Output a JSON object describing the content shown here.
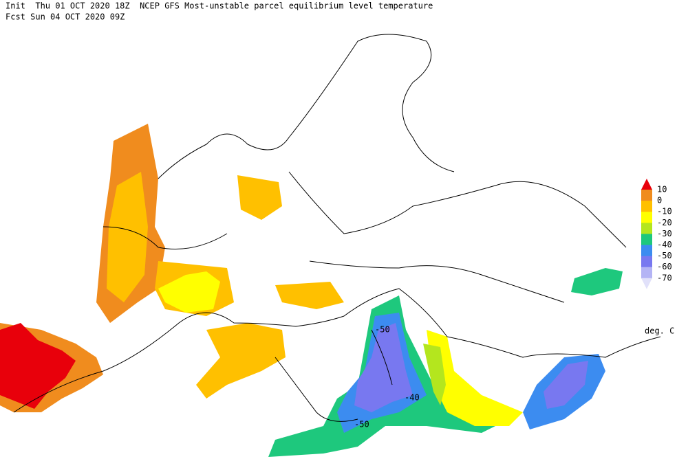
{
  "header": {
    "line1": "Init  Thu 01 OCT 2020 18Z  NCEP GFS Most-unstable parcel equilibrium level temperature",
    "line2": "Fcst Sun 04 OCT 2020 09Z"
  },
  "legend": {
    "levels": [
      10,
      0,
      -10,
      -20,
      -30,
      -40,
      -50,
      -60,
      -70
    ],
    "colors": [
      "#e8000b",
      "#f08c1e",
      "#ffc000",
      "#ffff00",
      "#b4e61e",
      "#1ec87d",
      "#3c8cf0",
      "#7878f0",
      "#b4b4f5",
      "#e1e1fa"
    ],
    "unit": "deg. C"
  },
  "contour_labels": [
    "-50",
    "-40",
    "-50"
  ]
}
